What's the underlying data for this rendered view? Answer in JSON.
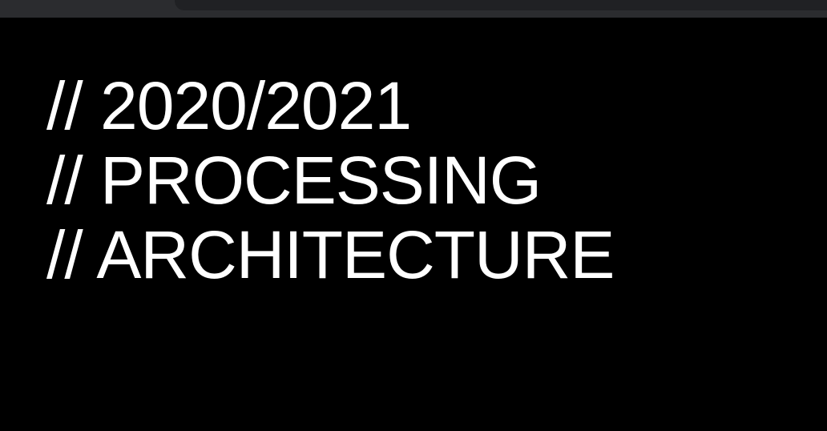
{
  "colors": {
    "background": "#000000",
    "text": "#ffffff",
    "chrome_bar": "#2b2c2f"
  },
  "content": {
    "lines": [
      "// 2020/2021",
      "// PROCESSING",
      "// ARCHITECTURE"
    ]
  }
}
